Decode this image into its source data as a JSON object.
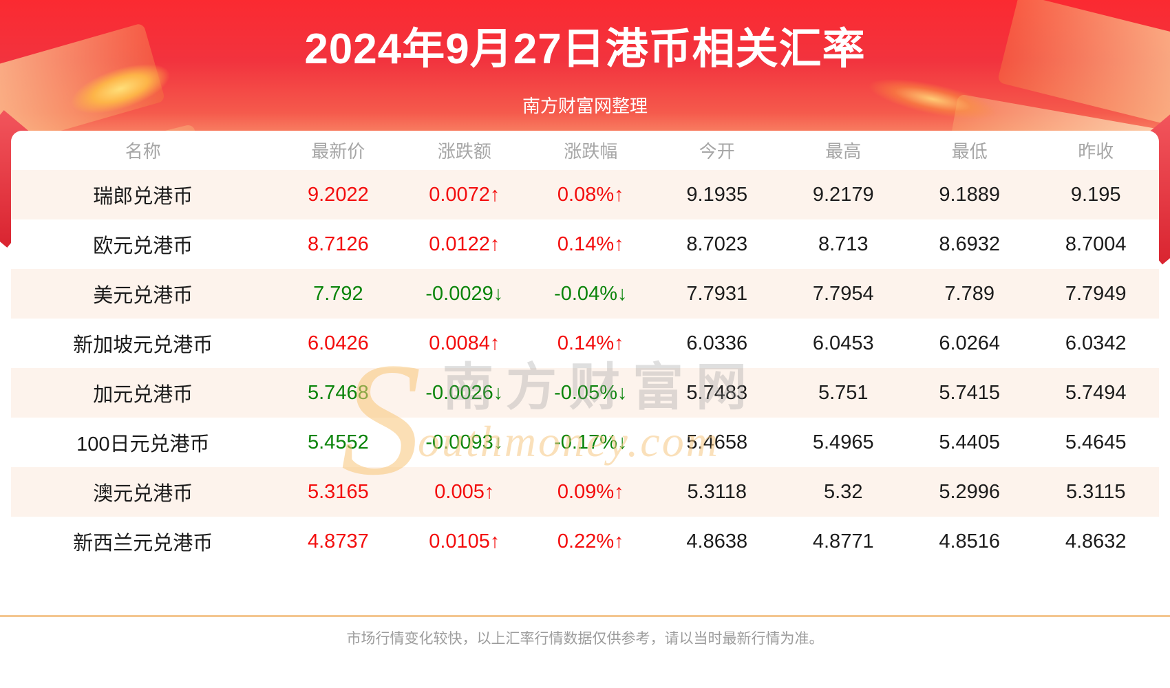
{
  "header": {
    "title": "2024年9月27日港币相关汇率",
    "subtitle": "南方财富网整理"
  },
  "watermark": {
    "initial": "S",
    "cn": "南方财富网",
    "en": "outhmoney.com"
  },
  "table": {
    "columns": [
      "名称",
      "最新价",
      "涨跌额",
      "涨跌幅",
      "今开",
      "最高",
      "最低",
      "昨收"
    ],
    "rows": [
      {
        "name": "瑞郎兑港币",
        "direction": "up",
        "last": "9.2022",
        "change": "0.0072↑",
        "pct": "0.08%↑",
        "open": "9.1935",
        "high": "9.2179",
        "low": "9.1889",
        "prev": "9.195"
      },
      {
        "name": "欧元兑港币",
        "direction": "up",
        "last": "8.7126",
        "change": "0.0122↑",
        "pct": "0.14%↑",
        "open": "8.7023",
        "high": "8.713",
        "low": "8.6932",
        "prev": "8.7004"
      },
      {
        "name": "美元兑港币",
        "direction": "down",
        "last": "7.792",
        "change": "-0.0029↓",
        "pct": "-0.04%↓",
        "open": "7.7931",
        "high": "7.7954",
        "low": "7.789",
        "prev": "7.7949"
      },
      {
        "name": "新加坡元兑港币",
        "direction": "up",
        "last": "6.0426",
        "change": "0.0084↑",
        "pct": "0.14%↑",
        "open": "6.0336",
        "high": "6.0453",
        "low": "6.0264",
        "prev": "6.0342"
      },
      {
        "name": "加元兑港币",
        "direction": "down",
        "last": "5.7468",
        "change": "-0.0026↓",
        "pct": "-0.05%↓",
        "open": "5.7483",
        "high": "5.751",
        "low": "5.7415",
        "prev": "5.7494"
      },
      {
        "name": "100日元兑港币",
        "direction": "down",
        "last": "5.4552",
        "change": "-0.0093↓",
        "pct": "-0.17%↓",
        "open": "5.4658",
        "high": "5.4965",
        "low": "5.4405",
        "prev": "5.4645"
      },
      {
        "name": "澳元兑港币",
        "direction": "up",
        "last": "5.3165",
        "change": "0.005↑",
        "pct": "0.09%↑",
        "open": "5.3118",
        "high": "5.32",
        "low": "5.2996",
        "prev": "5.3115"
      },
      {
        "name": "新西兰元兑港币",
        "direction": "up",
        "last": "4.8737",
        "change": "0.0105↑",
        "pct": "0.22%↑",
        "open": "4.8638",
        "high": "4.8771",
        "low": "4.8516",
        "prev": "4.8632"
      }
    ]
  },
  "footer": {
    "note": "市场行情变化较快，以上汇率行情数据仅供参考，请以当时最新行情为准。"
  },
  "colors": {
    "up_red": "#f30d0d",
    "down_green": "#0a840a",
    "banner_red_top": "#fb2a31",
    "banner_orange_bottom": "#fcc9a0",
    "row_highlight": "#fdf3ec",
    "divider_orange": "#f4c68f"
  }
}
